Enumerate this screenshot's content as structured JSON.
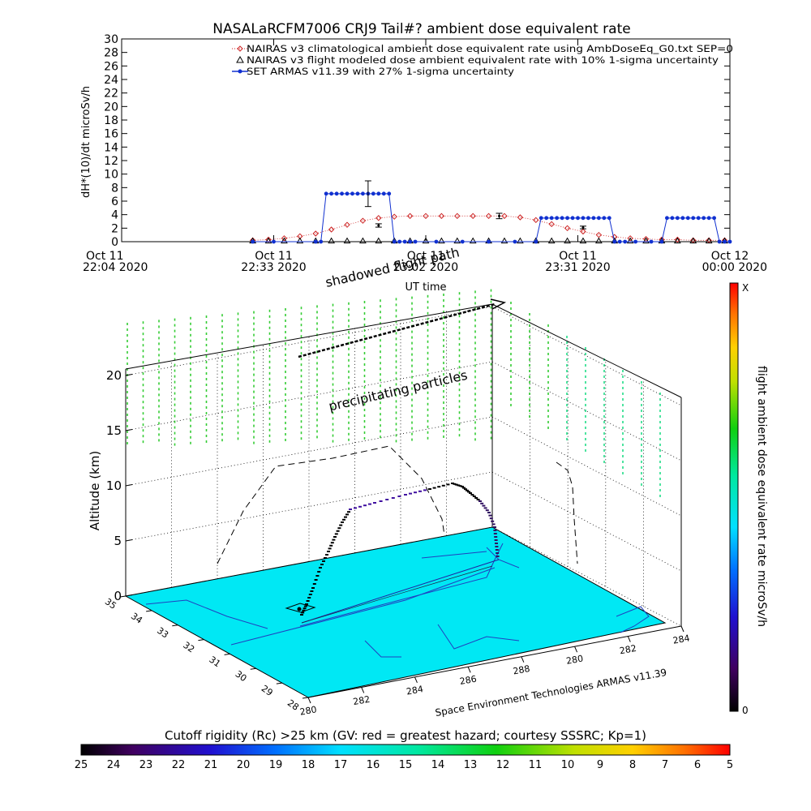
{
  "title": "NASALaRCFM7006  CRJ9 Tail#? ambient dose equivalent rate",
  "colors": {
    "nairas_clim": "#cc2222",
    "nairas_flight": "#000000",
    "armas": "#1030d0",
    "surface": "#00e8f4",
    "coast": "#2040c0",
    "column": "#33cc33"
  },
  "chart_data": [
    {
      "type": "line",
      "title": "NASALaRCFM7006  CRJ9 Tail#? ambient dose equivalent rate",
      "ylabel": "dH*(10)/dt microSv/h",
      "xlabel": "UT time",
      "ylim": [
        0,
        30
      ],
      "yticks": [
        "0",
        "2",
        "4",
        "6",
        "8",
        "10",
        "12",
        "14",
        "16",
        "18",
        "20",
        "22",
        "24",
        "26",
        "28",
        "30"
      ],
      "xlim_minutes": [
        0,
        116
      ],
      "x_ticks": [
        {
          "top": "Oct 11",
          "bottom": "22:04 2020",
          "t": 0
        },
        {
          "top": "Oct 11",
          "bottom": "22:33 2020",
          "t": 29
        },
        {
          "top": "Oct 11",
          "bottom": "23:02 2020",
          "t": 58
        },
        {
          "top": "Oct 11",
          "bottom": "23:31 2020",
          "t": 87
        },
        {
          "top": "Oct 12",
          "bottom": "00:00 2020",
          "t": 116
        }
      ],
      "legend_position": "top-right",
      "series": [
        {
          "name": "NAIRAS v3 climatological ambient dose equivalent rate using AmbDoseEq_G0.txt SEP=0",
          "marker": "diamond",
          "t": [
            25,
            28,
            31,
            34,
            37,
            40,
            43,
            46,
            49,
            52,
            55,
            58,
            61,
            64,
            67,
            70,
            73,
            76,
            79,
            82,
            85,
            88,
            91,
            94,
            97,
            100,
            103,
            106,
            109,
            112,
            115
          ],
          "values": [
            0.2,
            0.3,
            0.5,
            0.8,
            1.2,
            1.8,
            2.5,
            3.1,
            3.5,
            3.7,
            3.8,
            3.8,
            3.8,
            3.8,
            3.8,
            3.8,
            3.8,
            3.6,
            3.2,
            2.6,
            2.0,
            1.5,
            1.0,
            0.7,
            0.5,
            0.4,
            0.3,
            0.3,
            0.2,
            0.2,
            0.2
          ]
        },
        {
          "name": "NAIRAS v3 flight modeled dose ambient equivalent rate with 10% 1-sigma uncertainty",
          "marker": "triangle",
          "t": [
            25,
            28,
            31,
            34,
            37,
            40,
            43,
            46,
            49,
            52,
            55,
            58,
            61,
            64,
            67,
            70,
            73,
            76,
            79,
            82,
            85,
            88,
            91,
            94,
            97,
            100,
            103,
            106,
            109,
            112,
            115
          ],
          "values": [
            0.05,
            0.05,
            0.05,
            0.05,
            0.05,
            0.05,
            0.05,
            0.05,
            0.05,
            0.05,
            0.05,
            0.05,
            0.05,
            0.05,
            0.05,
            0.05,
            0.05,
            0.05,
            0.05,
            0.05,
            0.05,
            0.05,
            0.05,
            0.05,
            0.05,
            0.05,
            0.05,
            0.05,
            0.05,
            0.05,
            0.05
          ],
          "error_bars": [
            {
              "t": 49,
              "value": 2.4,
              "err": 0.25
            },
            {
              "t": 72,
              "value": 3.8,
              "err": 0.4
            },
            {
              "t": 88,
              "value": 2.1,
              "err": 0.2
            }
          ]
        },
        {
          "name": "SET ARMAS v11.39 with 27% 1-sigma uncertainty",
          "marker": "filled-circle",
          "t": [
            25,
            29,
            37,
            38,
            39,
            40,
            41,
            42,
            43,
            44,
            45,
            46,
            47,
            48,
            49,
            50,
            51,
            52,
            53,
            54,
            55,
            56,
            60,
            65,
            70,
            75,
            79,
            80,
            81,
            82,
            83,
            84,
            85,
            86,
            87,
            88,
            89,
            90,
            91,
            92,
            93,
            94,
            95,
            96,
            98,
            101,
            103,
            104,
            105,
            106,
            107,
            108,
            109,
            110,
            111,
            112,
            113,
            114,
            115,
            116
          ],
          "values": [
            0,
            0,
            0,
            0,
            7.1,
            7.1,
            7.1,
            7.1,
            7.1,
            7.1,
            7.1,
            7.1,
            7.1,
            7.1,
            7.1,
            7.1,
            7.1,
            0,
            0,
            0,
            0,
            0,
            0,
            0,
            0,
            0,
            0,
            3.5,
            3.5,
            3.5,
            3.5,
            3.5,
            3.5,
            3.5,
            3.5,
            3.5,
            3.5,
            3.5,
            3.5,
            3.5,
            3.5,
            0,
            0,
            0,
            0,
            0,
            0,
            3.5,
            3.5,
            3.5,
            3.5,
            3.5,
            3.5,
            3.5,
            3.5,
            3.5,
            3.5,
            0,
            0,
            0
          ],
          "error_bars": [
            {
              "t": 47,
              "value": 7.1,
              "err": 1.9
            }
          ]
        }
      ]
    },
    {
      "type": "scatter",
      "ylabel": "Altitude (km)",
      "z_ticks": [
        "0",
        "5",
        "10",
        "15",
        "20"
      ],
      "latitude_ticks": [
        "35",
        "34",
        "33",
        "32",
        "31",
        "30",
        "29",
        "28"
      ],
      "longitude_ticks": [
        "280",
        "282",
        "284",
        "286",
        "288",
        "280",
        "282",
        "284"
      ],
      "credit": "Space Environment Technologies ARMAS v11.39",
      "annotations": [
        "shadowed flight path",
        "precipitating particles"
      ],
      "colorbar": {
        "label": "flight ambient dose equivalent rate microSv/h",
        "top_label": "X",
        "bottom_label": "0"
      }
    }
  ],
  "rigidity_bar": {
    "title": "Cutoff rigidity (Rc) >25 km (GV: red = greatest hazard; courtesy SSSRC; Kp=1)",
    "labels": [
      "25",
      "24",
      "23",
      "22",
      "21",
      "20",
      "19",
      "18",
      "17",
      "16",
      "15",
      "14",
      "13",
      "12",
      "11",
      "10",
      "9",
      "8",
      "7",
      "6",
      "5"
    ]
  }
}
